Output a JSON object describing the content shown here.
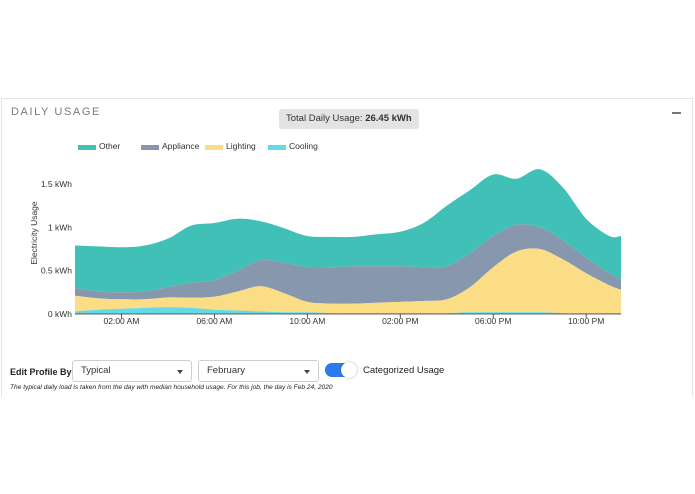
{
  "panel": {
    "title": "DAILY USAGE",
    "total_label": "Total Daily Usage:",
    "total_value": "26.45 kWh"
  },
  "chart_data": {
    "type": "area",
    "stacked": true,
    "title": "",
    "xlabel": "",
    "ylabel": "Electricity Usage",
    "x_unit": "hour of day",
    "xlim": [
      0,
      23.5
    ],
    "ylim": [
      0,
      1.5
    ],
    "x": [
      0,
      1,
      2,
      3,
      4,
      5,
      6,
      7,
      8,
      9,
      10,
      11,
      12,
      13,
      14,
      15,
      16,
      17,
      18,
      19,
      20,
      21,
      22,
      23,
      23.5
    ],
    "x_tick_values": [
      2,
      6,
      10,
      14,
      18,
      22
    ],
    "x_tick_labels": [
      "02:00 AM",
      "06:00 AM",
      "10:00 AM",
      "02:00 PM",
      "06:00 PM",
      "10:00 PM"
    ],
    "y_tick_values": [
      0,
      0.5,
      1,
      1.5
    ],
    "y_tick_labels": [
      "0 kWh",
      "0.5 kWh",
      "1 kWh",
      "1.5 kWh"
    ],
    "legend_position": "top-left",
    "series": [
      {
        "name": "Cooling",
        "color": "#62dbe9",
        "values": [
          0.03,
          0.05,
          0.06,
          0.07,
          0.08,
          0.07,
          0.05,
          0.04,
          0.03,
          0.02,
          0.02,
          0.01,
          0.01,
          0.01,
          0.01,
          0.01,
          0.01,
          0.02,
          0.02,
          0.02,
          0.02,
          0.01,
          0.01,
          0.01,
          0.01
        ]
      },
      {
        "name": "Lighting",
        "color": "#fbdd86",
        "values": [
          0.18,
          0.13,
          0.11,
          0.1,
          0.11,
          0.12,
          0.15,
          0.22,
          0.29,
          0.22,
          0.12,
          0.11,
          0.11,
          0.12,
          0.13,
          0.14,
          0.16,
          0.29,
          0.52,
          0.7,
          0.73,
          0.62,
          0.46,
          0.32,
          0.27
        ]
      },
      {
        "name": "Appliance",
        "color": "#8797ad",
        "values": [
          0.09,
          0.08,
          0.08,
          0.09,
          0.12,
          0.17,
          0.19,
          0.24,
          0.3,
          0.35,
          0.4,
          0.42,
          0.43,
          0.42,
          0.41,
          0.39,
          0.38,
          0.39,
          0.36,
          0.31,
          0.25,
          0.22,
          0.18,
          0.14,
          0.12
        ]
      },
      {
        "name": "Other",
        "color": "#41c0b7",
        "values": [
          0.49,
          0.52,
          0.52,
          0.53,
          0.56,
          0.66,
          0.66,
          0.6,
          0.45,
          0.4,
          0.36,
          0.35,
          0.34,
          0.37,
          0.4,
          0.51,
          0.7,
          0.73,
          0.71,
          0.53,
          0.67,
          0.61,
          0.45,
          0.43,
          0.5
        ]
      }
    ]
  },
  "controls": {
    "edit_profile_label": "Edit Profile By:",
    "profile_select": "Typical",
    "month_select": "February",
    "toggle_label": "Categorized Usage",
    "toggle_on": true
  },
  "footnote": "The typical daily load is taken from the day with median household usage. For this job, the day is Feb 24, 2020"
}
